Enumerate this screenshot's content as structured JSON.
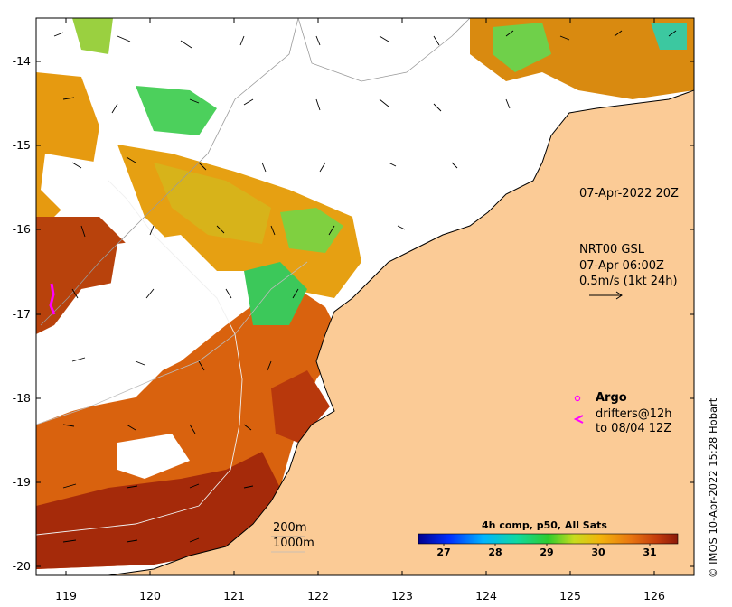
{
  "map": {
    "timestamp": "07-Apr-2022 20Z",
    "model_label": "NRT00 GSL",
    "model_time": "07-Apr 06:00Z",
    "scale_label": "0.5m/s (1kt 24h)",
    "depth_200": "200m",
    "depth_1000": "1000m",
    "argo_label": "Argo",
    "drifters_label": "drifters@12h",
    "drifters_range": "to 08/04 12Z",
    "credit": "© IMOS 10-Apr-2022 15:28 Hobart"
  },
  "axes": {
    "lat_ticks": [
      "-14",
      "-15",
      "-16",
      "-17",
      "-18",
      "-19",
      "-20"
    ],
    "lon_ticks": [
      "119",
      "120",
      "121",
      "122",
      "123",
      "124",
      "125",
      "126"
    ]
  },
  "colorbar": {
    "title": "4h comp, p50, All Sats",
    "ticks": [
      "27",
      "28",
      "29",
      "30",
      "31"
    ]
  },
  "colors": {
    "land": "#fbcb96",
    "warm_dark": "#a52a0a",
    "warm_mid": "#d9620e",
    "warm": "#e69a10",
    "mild": "#d7b31a",
    "cool": "#3cc85a",
    "argo": "#ff00ff"
  }
}
